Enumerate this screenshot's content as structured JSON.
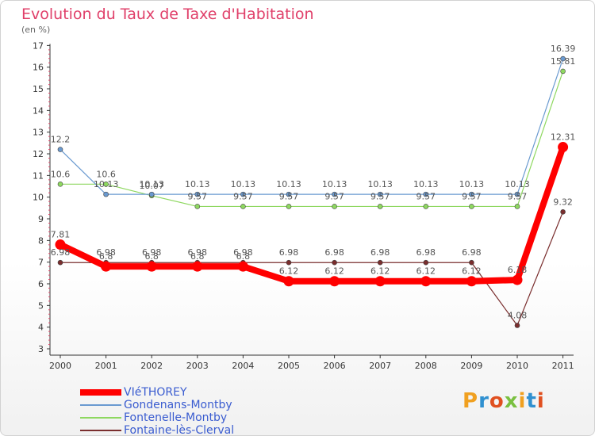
{
  "chart_data": {
    "type": "line",
    "title": "Evolution du Taux de Taxe d'Habitation",
    "subtitle": "(en %)",
    "categories": [
      "2000",
      "2001",
      "2002",
      "2003",
      "2004",
      "2005",
      "2006",
      "2007",
      "2008",
      "2009",
      "2010",
      "2011"
    ],
    "ylim": [
      3,
      17
    ],
    "yticks": [
      3,
      4,
      5,
      6,
      7,
      8,
      9,
      10,
      11,
      12,
      13,
      14,
      15,
      16,
      17
    ],
    "grid": false,
    "legend_position": "bottom-left",
    "series": [
      {
        "name": "VIéTHOREY",
        "color": "#ff0000",
        "values": [
          7.81,
          6.8,
          6.8,
          6.8,
          6.8,
          6.12,
          6.12,
          6.12,
          6.12,
          6.12,
          6.18,
          12.31
        ],
        "labels": [
          "7.81",
          "6.8",
          "6.8",
          "6.8",
          "6.8",
          "6.12",
          "6.12",
          "6.12",
          "6.12",
          "6.12",
          "6.18",
          "12.31"
        ]
      },
      {
        "name": "Gondenans-Montby",
        "color": "#6a9ad0",
        "values": [
          12.2,
          10.13,
          10.13,
          10.13,
          10.13,
          10.13,
          10.13,
          10.13,
          10.13,
          10.13,
          10.13,
          16.39
        ],
        "labels": [
          "12.2",
          "10.13",
          "10.13",
          "10.13",
          "10.13",
          "10.13",
          "10.13",
          "10.13",
          "10.13",
          "10.13",
          "10.13",
          "16.39"
        ]
      },
      {
        "name": "Fontenelle-Montby",
        "color": "#8ed860",
        "values": [
          10.6,
          10.6,
          10.07,
          9.57,
          9.57,
          9.57,
          9.57,
          9.57,
          9.57,
          9.57,
          9.57,
          15.81
        ],
        "labels": [
          "10.6",
          "10.6",
          "10.07",
          "9.57",
          "9.57",
          "9.57",
          "9.57",
          "9.57",
          "9.57",
          "9.57",
          "9.57",
          "15.81"
        ]
      },
      {
        "name": "Fontaine-lès-Clerval",
        "color": "#7a2e2e",
        "values": [
          6.98,
          6.98,
          6.98,
          6.98,
          6.98,
          6.98,
          6.98,
          6.98,
          6.98,
          6.98,
          4.08,
          9.32
        ],
        "labels": [
          "6.98",
          "6.98",
          "6.98",
          "6.98",
          "6.98",
          "6.98",
          "6.98",
          "6.98",
          "6.98",
          "6.98",
          "4.08",
          "9.32"
        ]
      }
    ]
  },
  "logo": {
    "letters": [
      "P",
      "r",
      "o",
      "x",
      "i",
      "t",
      "i"
    ],
    "colors": [
      "#f0a020",
      "#3090d0",
      "#e05020",
      "#7ac040",
      "#f0a020",
      "#3090d0",
      "#e05020"
    ]
  }
}
